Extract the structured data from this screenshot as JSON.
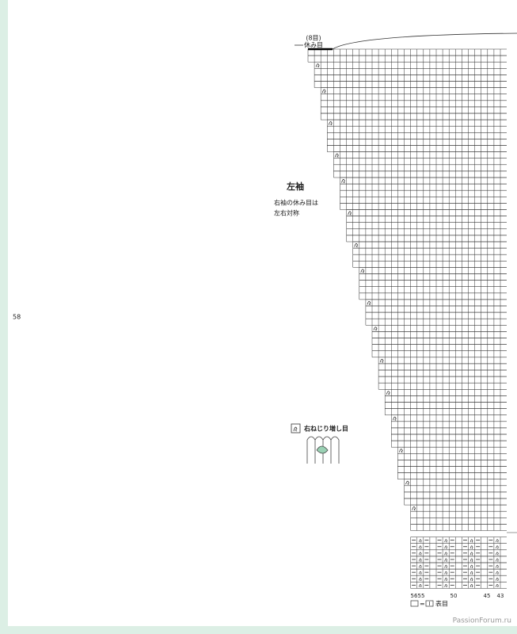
{
  "chart_header": {
    "stitches": "(8目)",
    "rest": "休み目"
  },
  "sleeve": {
    "title": "左袖",
    "note_1": "右袖の休み目は",
    "note_2": "左右対称"
  },
  "page_number": "58",
  "symbol_legend": "右ねじり増し目",
  "column_numbers": [
    56,
    55,
    50,
    45,
    43
  ],
  "key": {
    "equals": "=",
    "label": "表目"
  },
  "watermark": "PassionForum.ru"
}
